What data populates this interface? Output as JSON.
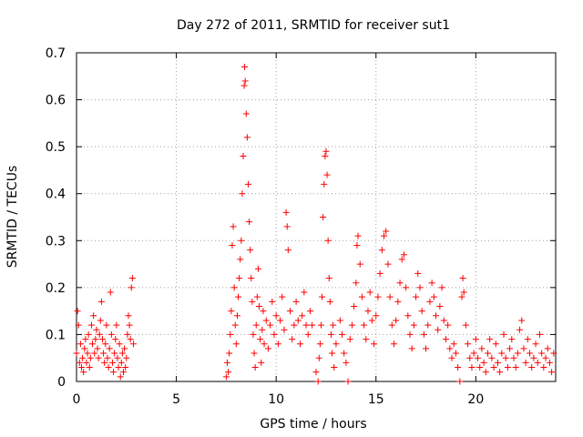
{
  "chart_data": {
    "type": "scatter",
    "title": "Day 272 of 2011, SRMTID for receiver sut1",
    "xlabel": "GPS time / hours",
    "ylabel": "SRMTID / TECUs",
    "xlim": [
      0,
      24
    ],
    "ylim": [
      0,
      0.7
    ],
    "xticks": [
      0,
      5,
      10,
      15,
      20
    ],
    "yticks": [
      0,
      0.1,
      0.2,
      0.3,
      0.4,
      0.5,
      0.6,
      0.7
    ],
    "xtick_labels": [
      "0",
      "5",
      "10",
      "15",
      "20"
    ],
    "ytick_labels": [
      "0",
      "0.1",
      "0.2",
      "0.3",
      "0.4",
      "0.5",
      "0.6",
      "0.7"
    ],
    "grid": true,
    "marker": "+",
    "color": "#ff0000",
    "series": [
      {
        "name": "SRMTID",
        "points": [
          [
            0.0,
            0.06
          ],
          [
            0.05,
            0.15
          ],
          [
            0.1,
            0.12
          ],
          [
            0.15,
            0.04
          ],
          [
            0.2,
            0.08
          ],
          [
            0.25,
            0.03
          ],
          [
            0.3,
            0.05
          ],
          [
            0.35,
            0.02
          ],
          [
            0.4,
            0.07
          ],
          [
            0.45,
            0.09
          ],
          [
            0.5,
            0.04
          ],
          [
            0.55,
            0.06
          ],
          [
            0.6,
            0.1
          ],
          [
            0.65,
            0.03
          ],
          [
            0.7,
            0.05
          ],
          [
            0.75,
            0.12
          ],
          [
            0.8,
            0.08
          ],
          [
            0.85,
            0.14
          ],
          [
            0.9,
            0.06
          ],
          [
            0.95,
            0.09
          ],
          [
            1.0,
            0.11
          ],
          [
            1.05,
            0.07
          ],
          [
            1.1,
            0.05
          ],
          [
            1.15,
            0.1
          ],
          [
            1.2,
            0.13
          ],
          [
            1.25,
            0.17
          ],
          [
            1.3,
            0.09
          ],
          [
            1.35,
            0.06
          ],
          [
            1.4,
            0.04
          ],
          [
            1.45,
            0.08
          ],
          [
            1.5,
            0.12
          ],
          [
            1.55,
            0.05
          ],
          [
            1.6,
            0.03
          ],
          [
            1.65,
            0.07
          ],
          [
            1.7,
            0.19
          ],
          [
            1.75,
            0.1
          ],
          [
            1.8,
            0.04
          ],
          [
            1.85,
            0.02
          ],
          [
            1.9,
            0.06
          ],
          [
            1.95,
            0.09
          ],
          [
            2.0,
            0.12
          ],
          [
            2.05,
            0.05
          ],
          [
            2.1,
            0.03
          ],
          [
            2.15,
            0.08
          ],
          [
            2.2,
            0.01
          ],
          [
            2.25,
            0.04
          ],
          [
            2.3,
            0.06
          ],
          [
            2.35,
            0.02
          ],
          [
            2.4,
            0.07
          ],
          [
            2.45,
            0.03
          ],
          [
            2.5,
            0.05
          ],
          [
            2.55,
            0.1
          ],
          [
            2.6,
            0.14
          ],
          [
            2.65,
            0.12
          ],
          [
            2.7,
            0.09
          ],
          [
            2.75,
            0.2
          ],
          [
            2.8,
            0.22
          ],
          [
            2.85,
            0.08
          ],
          [
            7.5,
            0.01
          ],
          [
            7.55,
            0.04
          ],
          [
            7.6,
            0.02
          ],
          [
            7.65,
            0.06
          ],
          [
            7.7,
            0.1
          ],
          [
            7.75,
            0.15
          ],
          [
            7.8,
            0.29
          ],
          [
            7.85,
            0.33
          ],
          [
            7.9,
            0.2
          ],
          [
            7.95,
            0.12
          ],
          [
            8.0,
            0.08
          ],
          [
            8.05,
            0.14
          ],
          [
            8.1,
            0.18
          ],
          [
            8.15,
            0.22
          ],
          [
            8.2,
            0.26
          ],
          [
            8.25,
            0.3
          ],
          [
            8.3,
            0.4
          ],
          [
            8.35,
            0.48
          ],
          [
            8.4,
            0.63
          ],
          [
            8.42,
            0.67
          ],
          [
            8.45,
            0.64
          ],
          [
            8.5,
            0.57
          ],
          [
            8.55,
            0.52
          ],
          [
            8.6,
            0.42
          ],
          [
            8.65,
            0.34
          ],
          [
            8.7,
            0.28
          ],
          [
            8.75,
            0.22
          ],
          [
            8.8,
            0.17
          ],
          [
            8.85,
            0.1
          ],
          [
            8.9,
            0.06
          ],
          [
            8.95,
            0.03
          ],
          [
            9.0,
            0.12
          ],
          [
            9.05,
            0.18
          ],
          [
            9.1,
            0.24
          ],
          [
            9.15,
            0.16
          ],
          [
            9.2,
            0.09
          ],
          [
            9.25,
            0.04
          ],
          [
            9.3,
            0.11
          ],
          [
            9.35,
            0.15
          ],
          [
            9.4,
            0.08
          ],
          [
            9.5,
            0.13
          ],
          [
            9.6,
            0.07
          ],
          [
            9.7,
            0.12
          ],
          [
            9.8,
            0.17
          ],
          [
            9.9,
            0.1
          ],
          [
            10.0,
            0.14
          ],
          [
            10.1,
            0.08
          ],
          [
            10.2,
            0.13
          ],
          [
            10.3,
            0.18
          ],
          [
            10.4,
            0.11
          ],
          [
            10.5,
            0.36
          ],
          [
            10.55,
            0.33
          ],
          [
            10.6,
            0.28
          ],
          [
            10.7,
            0.15
          ],
          [
            10.8,
            0.09
          ],
          [
            10.9,
            0.12
          ],
          [
            11.0,
            0.17
          ],
          [
            11.1,
            0.13
          ],
          [
            11.2,
            0.08
          ],
          [
            11.3,
            0.14
          ],
          [
            11.4,
            0.19
          ],
          [
            11.5,
            0.12
          ],
          [
            11.6,
            0.1
          ],
          [
            11.7,
            0.15
          ],
          [
            11.8,
            0.12
          ],
          [
            12.0,
            0.02
          ],
          [
            12.1,
            0.0
          ],
          [
            12.15,
            0.05
          ],
          [
            12.2,
            0.08
          ],
          [
            12.25,
            0.12
          ],
          [
            12.3,
            0.18
          ],
          [
            12.35,
            0.35
          ],
          [
            12.4,
            0.42
          ],
          [
            12.45,
            0.48
          ],
          [
            12.5,
            0.49
          ],
          [
            12.55,
            0.44
          ],
          [
            12.6,
            0.3
          ],
          [
            12.65,
            0.22
          ],
          [
            12.7,
            0.17
          ],
          [
            12.75,
            0.1
          ],
          [
            12.8,
            0.06
          ],
          [
            12.85,
            0.12
          ],
          [
            12.9,
            0.03
          ],
          [
            13.0,
            0.08
          ],
          [
            13.2,
            0.13
          ],
          [
            13.3,
            0.1
          ],
          [
            13.4,
            0.06
          ],
          [
            13.5,
            0.04
          ],
          [
            13.6,
            0.0
          ],
          [
            13.7,
            0.09
          ],
          [
            13.8,
            0.12
          ],
          [
            13.9,
            0.16
          ],
          [
            14.0,
            0.21
          ],
          [
            14.05,
            0.29
          ],
          [
            14.1,
            0.31
          ],
          [
            14.2,
            0.25
          ],
          [
            14.3,
            0.18
          ],
          [
            14.4,
            0.12
          ],
          [
            14.5,
            0.09
          ],
          [
            14.6,
            0.15
          ],
          [
            14.7,
            0.19
          ],
          [
            14.8,
            0.13
          ],
          [
            14.9,
            0.08
          ],
          [
            15.0,
            0.14
          ],
          [
            15.1,
            0.18
          ],
          [
            15.2,
            0.23
          ],
          [
            15.3,
            0.28
          ],
          [
            15.4,
            0.31
          ],
          [
            15.5,
            0.32
          ],
          [
            15.6,
            0.25
          ],
          [
            15.7,
            0.18
          ],
          [
            15.8,
            0.12
          ],
          [
            15.9,
            0.08
          ],
          [
            16.0,
            0.13
          ],
          [
            16.1,
            0.17
          ],
          [
            16.2,
            0.21
          ],
          [
            16.3,
            0.26
          ],
          [
            16.4,
            0.27
          ],
          [
            16.5,
            0.2
          ],
          [
            16.6,
            0.14
          ],
          [
            16.7,
            0.1
          ],
          [
            16.8,
            0.07
          ],
          [
            16.9,
            0.12
          ],
          [
            17.0,
            0.18
          ],
          [
            17.1,
            0.23
          ],
          [
            17.2,
            0.2
          ],
          [
            17.3,
            0.15
          ],
          [
            17.4,
            0.1
          ],
          [
            17.5,
            0.07
          ],
          [
            17.6,
            0.12
          ],
          [
            17.7,
            0.17
          ],
          [
            17.8,
            0.21
          ],
          [
            17.9,
            0.18
          ],
          [
            18.0,
            0.14
          ],
          [
            18.1,
            0.11
          ],
          [
            18.2,
            0.16
          ],
          [
            18.3,
            0.2
          ],
          [
            18.4,
            0.13
          ],
          [
            18.5,
            0.09
          ],
          [
            18.6,
            0.12
          ],
          [
            18.7,
            0.07
          ],
          [
            18.8,
            0.05
          ],
          [
            18.9,
            0.08
          ],
          [
            19.0,
            0.06
          ],
          [
            19.1,
            0.03
          ],
          [
            19.2,
            0.0
          ],
          [
            19.3,
            0.18
          ],
          [
            19.35,
            0.22
          ],
          [
            19.4,
            0.19
          ],
          [
            19.5,
            0.12
          ],
          [
            19.6,
            0.08
          ],
          [
            19.7,
            0.05
          ],
          [
            19.8,
            0.03
          ],
          [
            19.9,
            0.06
          ],
          [
            20.0,
            0.09
          ],
          [
            20.1,
            0.05
          ],
          [
            20.2,
            0.03
          ],
          [
            20.3,
            0.07
          ],
          [
            20.4,
            0.04
          ],
          [
            20.5,
            0.02
          ],
          [
            20.6,
            0.06
          ],
          [
            20.7,
            0.09
          ],
          [
            20.8,
            0.05
          ],
          [
            20.9,
            0.03
          ],
          [
            21.0,
            0.08
          ],
          [
            21.1,
            0.04
          ],
          [
            21.2,
            0.02
          ],
          [
            21.3,
            0.06
          ],
          [
            21.4,
            0.1
          ],
          [
            21.5,
            0.05
          ],
          [
            21.6,
            0.03
          ],
          [
            21.7,
            0.07
          ],
          [
            21.8,
            0.09
          ],
          [
            21.9,
            0.05
          ],
          [
            22.0,
            0.03
          ],
          [
            22.1,
            0.06
          ],
          [
            22.2,
            0.11
          ],
          [
            22.3,
            0.13
          ],
          [
            22.4,
            0.07
          ],
          [
            22.5,
            0.04
          ],
          [
            22.6,
            0.09
          ],
          [
            22.7,
            0.06
          ],
          [
            22.8,
            0.03
          ],
          [
            22.9,
            0.05
          ],
          [
            23.0,
            0.08
          ],
          [
            23.1,
            0.04
          ],
          [
            23.2,
            0.1
          ],
          [
            23.3,
            0.06
          ],
          [
            23.4,
            0.03
          ],
          [
            23.5,
            0.05
          ],
          [
            23.6,
            0.07
          ],
          [
            23.7,
            0.04
          ],
          [
            23.8,
            0.02
          ],
          [
            23.9,
            0.06
          ]
        ]
      }
    ]
  }
}
